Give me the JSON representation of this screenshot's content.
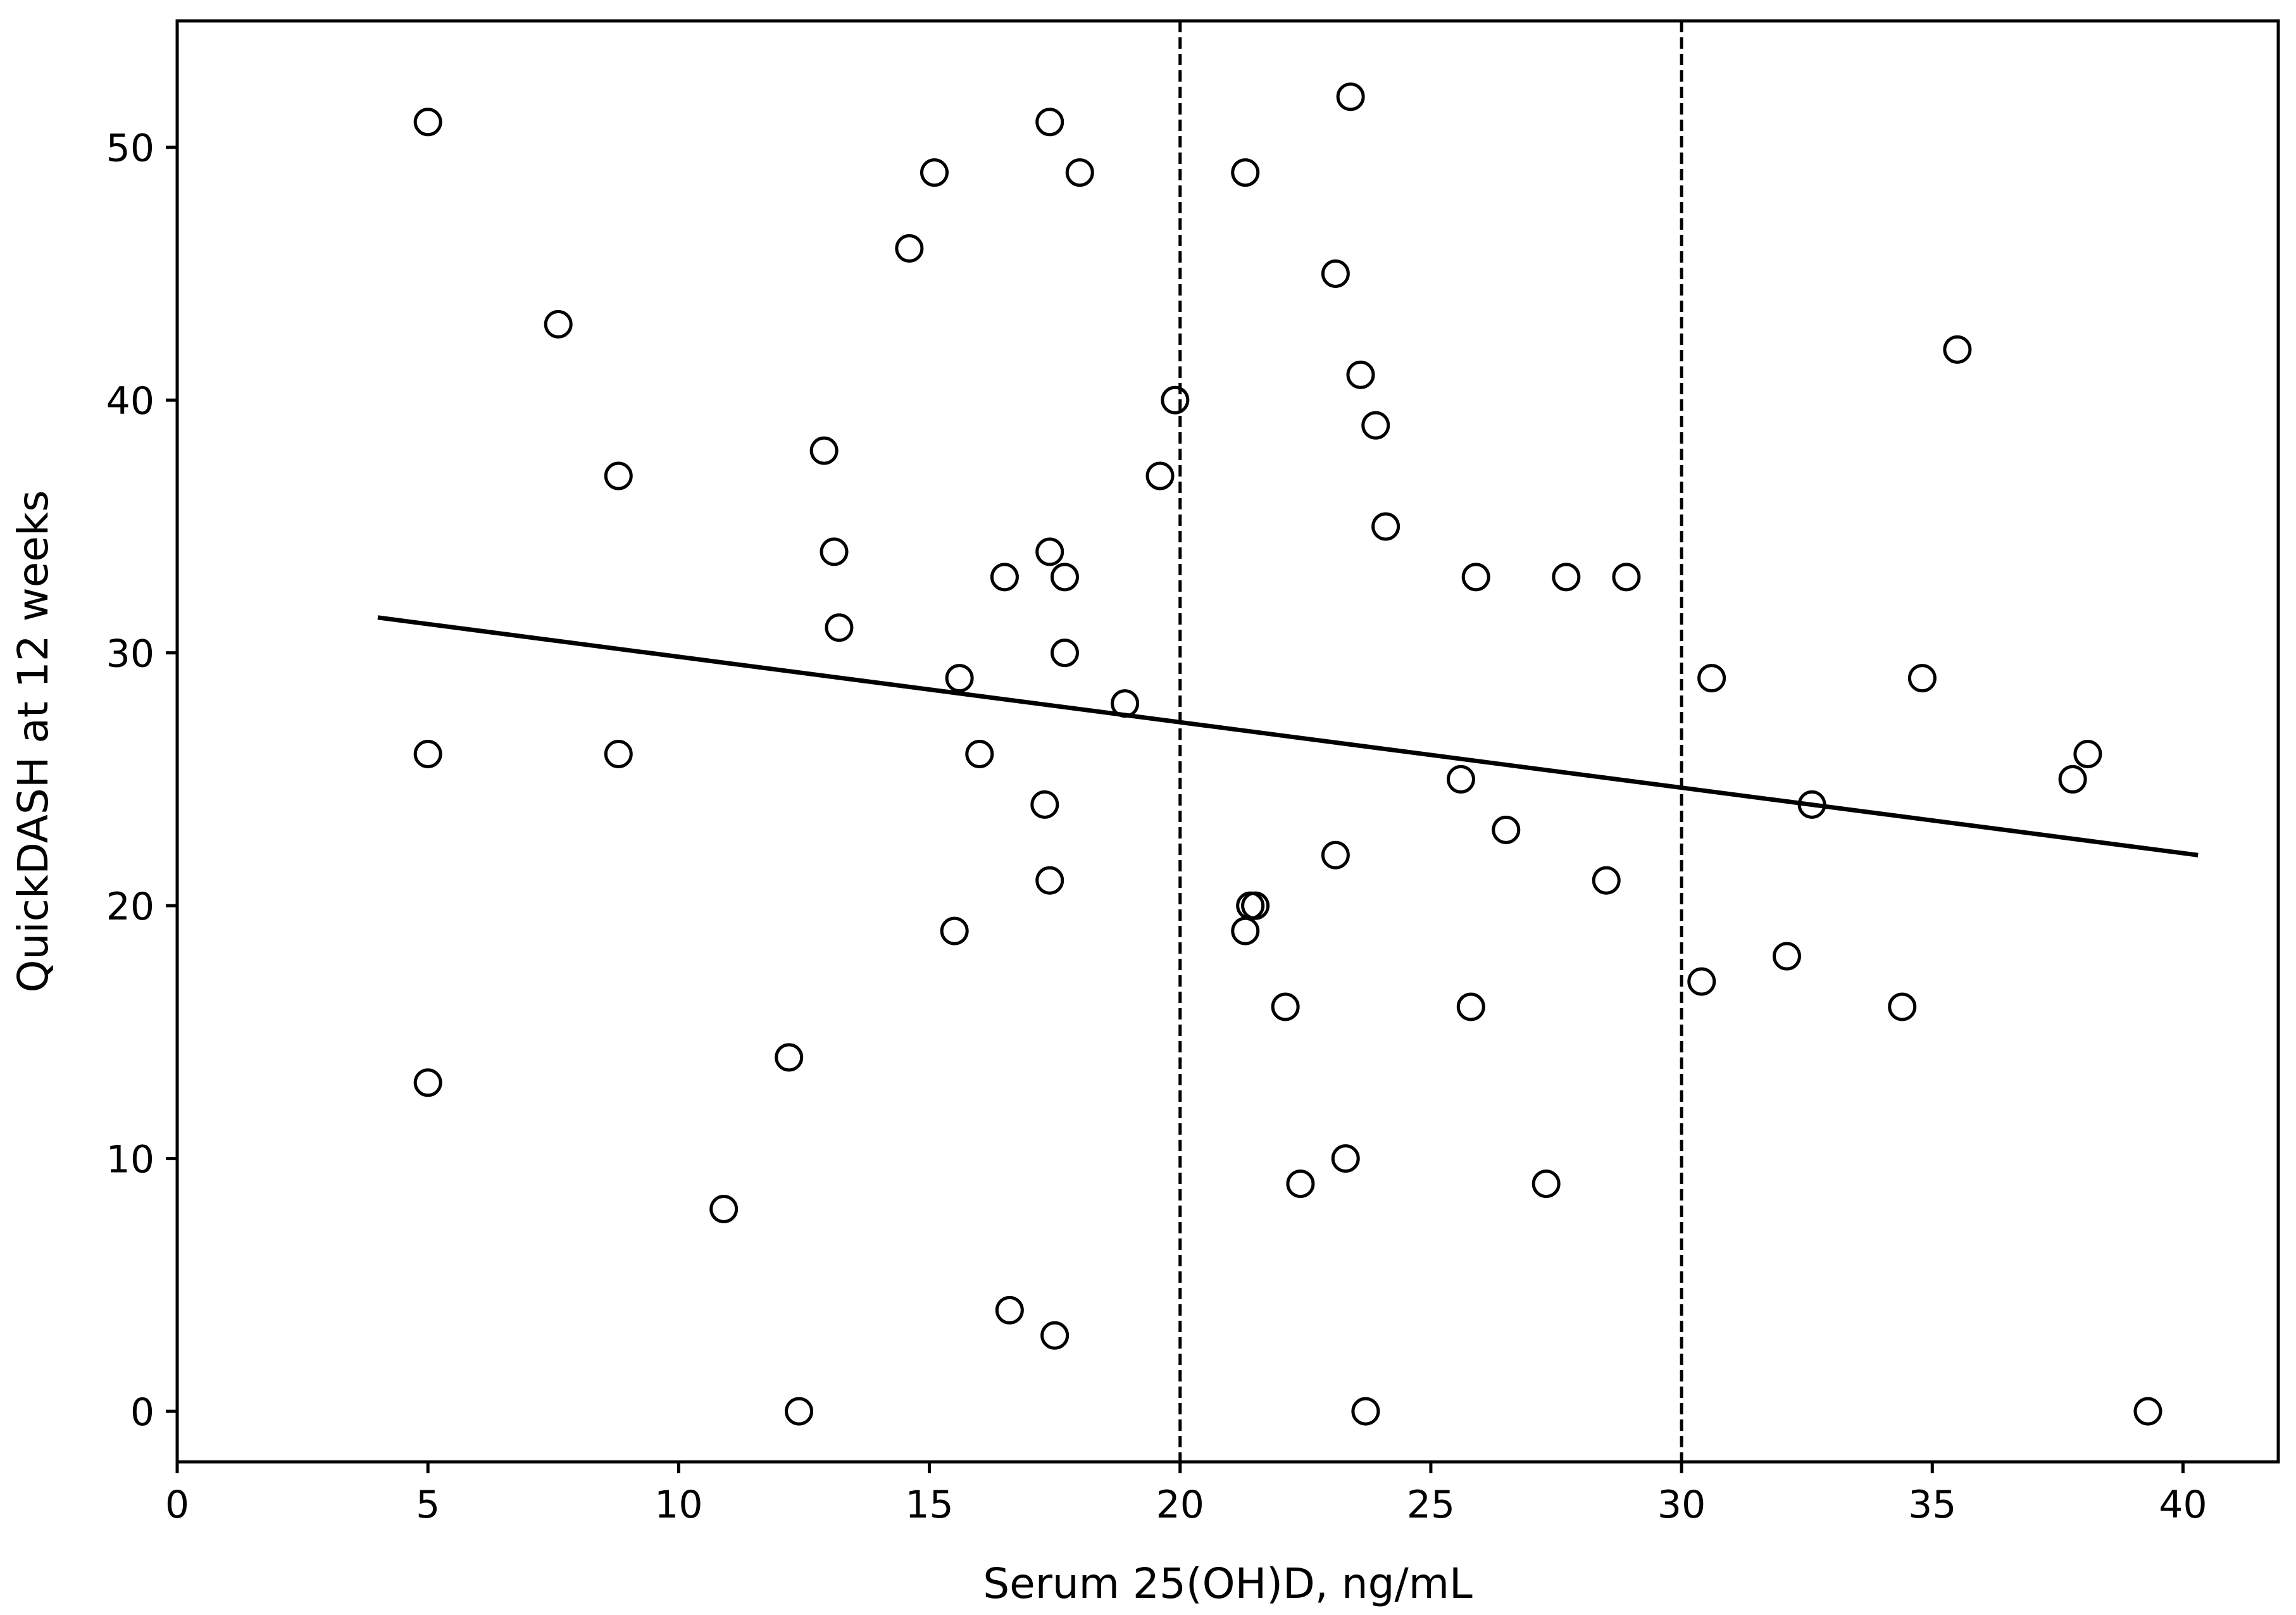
{
  "chart_data": {
    "type": "scatter",
    "title": "",
    "xlabel": "Serum 25(OH)D, ng/mL",
    "ylabel": "QuickDASH at 12 weeks",
    "xlim": [
      0,
      41.9
    ],
    "ylim": [
      -2,
      55
    ],
    "xticks": [
      0,
      5,
      10,
      15,
      20,
      25,
      30,
      35,
      40
    ],
    "yticks": [
      0,
      10,
      20,
      30,
      40,
      50
    ],
    "grid": false,
    "marker": "open-circle",
    "points": [
      {
        "x": 5.0,
        "y": 51
      },
      {
        "x": 5.0,
        "y": 26
      },
      {
        "x": 5.0,
        "y": 13
      },
      {
        "x": 7.6,
        "y": 43
      },
      {
        "x": 8.8,
        "y": 37
      },
      {
        "x": 8.8,
        "y": 26
      },
      {
        "x": 10.9,
        "y": 8
      },
      {
        "x": 12.2,
        "y": 14
      },
      {
        "x": 12.4,
        "y": 0
      },
      {
        "x": 12.9,
        "y": 38
      },
      {
        "x": 13.1,
        "y": 34
      },
      {
        "x": 13.2,
        "y": 31
      },
      {
        "x": 14.6,
        "y": 46
      },
      {
        "x": 15.1,
        "y": 49
      },
      {
        "x": 15.5,
        "y": 19
      },
      {
        "x": 15.6,
        "y": 29
      },
      {
        "x": 16.0,
        "y": 26
      },
      {
        "x": 16.5,
        "y": 33
      },
      {
        "x": 16.6,
        "y": 4
      },
      {
        "x": 17.3,
        "y": 24
      },
      {
        "x": 17.4,
        "y": 51
      },
      {
        "x": 17.4,
        "y": 34
      },
      {
        "x": 17.4,
        "y": 21
      },
      {
        "x": 17.5,
        "y": 3
      },
      {
        "x": 17.7,
        "y": 33
      },
      {
        "x": 17.7,
        "y": 30
      },
      {
        "x": 18.0,
        "y": 49
      },
      {
        "x": 18.9,
        "y": 28
      },
      {
        "x": 19.6,
        "y": 37
      },
      {
        "x": 19.9,
        "y": 40
      },
      {
        "x": 21.3,
        "y": 49
      },
      {
        "x": 21.3,
        "y": 19
      },
      {
        "x": 21.4,
        "y": 20
      },
      {
        "x": 21.5,
        "y": 20
      },
      {
        "x": 22.1,
        "y": 16
      },
      {
        "x": 22.4,
        "y": 9
      },
      {
        "x": 23.1,
        "y": 45
      },
      {
        "x": 23.1,
        "y": 22
      },
      {
        "x": 23.3,
        "y": 10
      },
      {
        "x": 23.4,
        "y": 52
      },
      {
        "x": 23.6,
        "y": 41
      },
      {
        "x": 23.7,
        "y": 0
      },
      {
        "x": 23.9,
        "y": 39
      },
      {
        "x": 24.1,
        "y": 35
      },
      {
        "x": 25.6,
        "y": 25
      },
      {
        "x": 25.8,
        "y": 16
      },
      {
        "x": 25.9,
        "y": 33
      },
      {
        "x": 26.5,
        "y": 23
      },
      {
        "x": 27.3,
        "y": 9
      },
      {
        "x": 27.7,
        "y": 33
      },
      {
        "x": 28.5,
        "y": 21
      },
      {
        "x": 28.9,
        "y": 33
      },
      {
        "x": 30.4,
        "y": 17
      },
      {
        "x": 30.6,
        "y": 29
      },
      {
        "x": 32.1,
        "y": 18
      },
      {
        "x": 32.6,
        "y": 24
      },
      {
        "x": 34.4,
        "y": 16
      },
      {
        "x": 34.8,
        "y": 29
      },
      {
        "x": 35.5,
        "y": 42
      },
      {
        "x": 37.8,
        "y": 25
      },
      {
        "x": 38.1,
        "y": 26
      },
      {
        "x": 39.3,
        "y": 0
      }
    ],
    "trend_line": {
      "x": [
        4.0,
        40.3
      ],
      "y": [
        31.4,
        22.0
      ]
    },
    "reference_lines_x": [
      20,
      30
    ],
    "reference_line_style": "dashed"
  }
}
